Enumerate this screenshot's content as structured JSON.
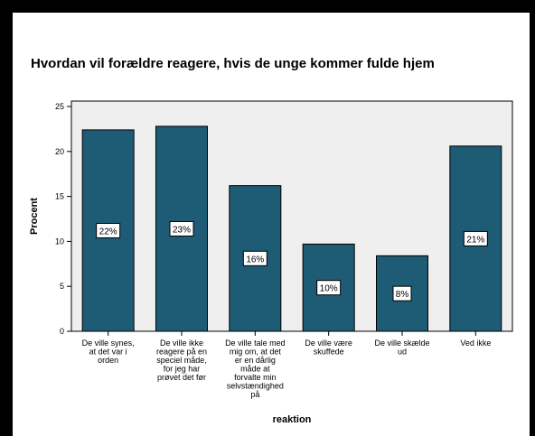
{
  "chart_data": {
    "type": "bar",
    "title": "Hvordan vil forældre reagere, hvis de unge kommer fulde hjem",
    "xlabel": "reaktion",
    "ylabel": "Procent",
    "ylim": [
      0,
      25
    ],
    "yticks": [
      "0",
      "5",
      "10",
      "15",
      "20",
      "25"
    ],
    "grid": false,
    "categories": [
      [
        "De ville synes,",
        "at det var i",
        "orden"
      ],
      [
        "De ville ikke",
        "reagere på en",
        "speciel måde,",
        "for jeg har",
        "prøvet det før"
      ],
      [
        "De ville tale med",
        "mig om, at det",
        "er en dårlig",
        "måde at",
        "forvalte min",
        "selvstændighed",
        "på"
      ],
      [
        "De ville være",
        "skuffede"
      ],
      [
        "De ville skælde",
        "ud"
      ],
      [
        "Ved ikke"
      ]
    ],
    "values": [
      22.4,
      22.8,
      16.2,
      9.7,
      8.4,
      20.6
    ],
    "data_labels": [
      "22%",
      "23%",
      "16%",
      "10%",
      "8%",
      "21%"
    ],
    "colors": {
      "bar": "#1d5c74",
      "plot_background": "#efefef"
    }
  }
}
